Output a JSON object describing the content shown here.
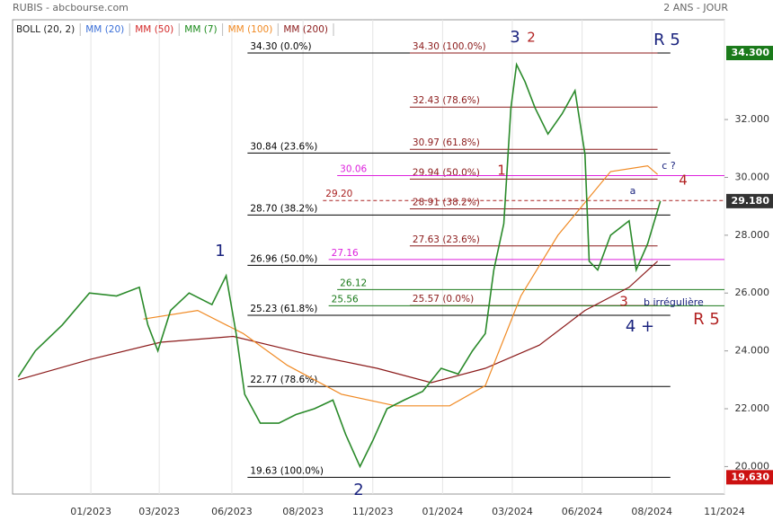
{
  "header": {
    "title": "RUBIS - abcbourse.com",
    "period": "2 ANS - JOUR"
  },
  "chart_data": {
    "type": "line",
    "legend": [
      {
        "name": "BOLL (20, 2)",
        "color": "#222222"
      },
      {
        "name": "MM (20)",
        "color": "#3a6fd8"
      },
      {
        "name": "MM (50)",
        "color": "#d42a2a"
      },
      {
        "name": "MM (7)",
        "color": "#1a8a1a"
      },
      {
        "name": "MM (100)",
        "color": "#f08a24"
      },
      {
        "name": "MM (200)",
        "color": "#8b1a1a"
      }
    ],
    "price": {
      "color": "#2a8a2a",
      "x": [
        4,
        16,
        35,
        54,
        73,
        89,
        95,
        102,
        111,
        124,
        140,
        150,
        157,
        163,
        174,
        187,
        199,
        212,
        225,
        234,
        244,
        253,
        263,
        275,
        288,
        301,
        313,
        323,
        332,
        338,
        345,
        350,
        354,
        360,
        367,
        376,
        386,
        395,
        402,
        405,
        411,
        420,
        433,
        438,
        446,
        455
      ],
      "values": [
        23.1,
        24.0,
        24.9,
        26.0,
        25.9,
        26.2,
        24.9,
        24.0,
        25.4,
        26.0,
        25.6,
        26.6,
        24.6,
        22.5,
        21.5,
        21.5,
        21.8,
        22.0,
        22.3,
        21.1,
        20.0,
        20.9,
        22.0,
        22.3,
        22.6,
        23.4,
        23.2,
        24.0,
        24.6,
        26.8,
        28.4,
        32.4,
        33.9,
        33.3,
        32.4,
        31.5,
        32.2,
        33.0,
        30.8,
        27.1,
        26.8,
        28.0,
        28.5,
        26.8,
        27.7,
        29.18
      ]
    },
    "series": [
      {
        "name": "MM (200)",
        "color": "#8b1a1a",
        "x": [
          4,
          54,
          104,
          155,
          206,
          256,
          294,
          332,
          370,
          402,
          433,
          453
        ],
        "values": [
          23.0,
          23.7,
          24.3,
          24.5,
          23.9,
          23.4,
          22.9,
          23.4,
          24.2,
          25.4,
          26.2,
          27.1
        ]
      },
      {
        "name": "MM (100)",
        "color": "#f08a24",
        "x": [
          92,
          130,
          162,
          193,
          231,
          269,
          307,
          332,
          357,
          383,
          420,
          446,
          453
        ],
        "values": [
          25.1,
          25.4,
          24.6,
          23.5,
          22.5,
          22.1,
          22.1,
          22.8,
          25.9,
          28.0,
          30.2,
          30.4,
          30.1
        ]
      }
    ],
    "xlim": [
      0,
      500
    ],
    "xticks": [
      {
        "value": 55,
        "label": "01/2023"
      },
      {
        "value": 103,
        "label": "03/2023"
      },
      {
        "value": 154,
        "label": "06/2023"
      },
      {
        "value": 204,
        "label": "08/2023"
      },
      {
        "value": 253,
        "label": "11/2023"
      },
      {
        "value": 302,
        "label": "01/2024"
      },
      {
        "value": 351,
        "label": "03/2024"
      },
      {
        "value": 400,
        "label": "06/2024"
      },
      {
        "value": 449,
        "label": "08/2024"
      },
      {
        "value": 500,
        "label": "11/2024"
      }
    ],
    "ylim": [
      19.05,
      35.45
    ],
    "yticks": [
      {
        "value": 20,
        "label": "20.000"
      },
      {
        "value": 22,
        "label": "22.000"
      },
      {
        "value": 24,
        "label": "24.000"
      },
      {
        "value": 26,
        "label": "26.000"
      },
      {
        "value": 28,
        "label": "28.000"
      },
      {
        "value": 30,
        "label": "30.000"
      },
      {
        "value": 32,
        "label": "32.000"
      }
    ],
    "badges": [
      {
        "value": 34.3,
        "label": "34.300",
        "color": "#1a7a1a"
      },
      {
        "value": 29.18,
        "label": "29.180",
        "color": "#333333"
      },
      {
        "value": 19.63,
        "label": "19.630",
        "color": "#cc1111"
      }
    ],
    "levels": [
      {
        "value": 34.3,
        "label": "34.30  (0.0%)",
        "color": "#000000",
        "x": [
          165,
          462
        ]
      },
      {
        "value": 30.84,
        "label": "30.84  (23.6%)",
        "color": "#000000",
        "x": [
          165,
          462
        ]
      },
      {
        "value": 28.7,
        "label": "28.70  (38.2%)",
        "color": "#000000",
        "x": [
          165,
          462
        ]
      },
      {
        "value": 26.96,
        "label": "26.96  (50.0%)",
        "color": "#000000",
        "x": [
          165,
          462
        ]
      },
      {
        "value": 25.23,
        "label": "25.23  (61.8%)",
        "color": "#000000",
        "x": [
          165,
          462
        ]
      },
      {
        "value": 22.77,
        "label": "22.77  (78.6%)",
        "color": "#000000",
        "x": [
          165,
          462
        ]
      },
      {
        "value": 19.63,
        "label": "19.63  (100.0%)",
        "color": "#000000",
        "x": [
          165,
          462
        ]
      },
      {
        "value": 34.3,
        "label": "34.30  (100.0%)",
        "color": "#8b1a1a",
        "x": [
          279,
          453
        ]
      },
      {
        "value": 32.43,
        "label": "32.43  (78.6%)",
        "color": "#8b1a1a",
        "x": [
          279,
          453
        ]
      },
      {
        "value": 30.97,
        "label": "30.97  (61.8%)",
        "color": "#8b1a1a",
        "x": [
          279,
          453
        ]
      },
      {
        "value": 29.94,
        "label": "29.94  (50.0%)",
        "color": "#8b1a1a",
        "x": [
          279,
          453
        ]
      },
      {
        "value": 28.91,
        "label": "28.91  (38.2%)",
        "color": "#8b1a1a",
        "x": [
          279,
          453
        ]
      },
      {
        "value": 27.63,
        "label": "27.63  (23.6%)",
        "color": "#8b1a1a",
        "x": [
          279,
          453
        ]
      },
      {
        "value": 25.57,
        "label": "25.57  (0.0%)",
        "color": "#8b1a1a",
        "x": [
          279,
          453
        ]
      },
      {
        "value": 30.06,
        "label": "30.06",
        "color": "#dd22dd",
        "x": [
          228,
          500
        ]
      },
      {
        "value": 27.16,
        "label": "27.16",
        "color": "#dd22dd",
        "x": [
          222,
          500
        ]
      },
      {
        "value": 29.2,
        "label": "29.20",
        "color": "#aa2222",
        "x": [
          218,
          500
        ],
        "dashed": true
      },
      {
        "value": 26.12,
        "label": "26.12",
        "color": "#1a7a1a",
        "x": [
          228,
          500
        ]
      },
      {
        "value": 25.56,
        "label": "25.56",
        "color": "#1a7a1a",
        "x": [
          222,
          500
        ]
      }
    ]
  },
  "annotations": [
    "1",
    "2",
    "3",
    "2",
    "1",
    "R 5",
    "c ?",
    "4",
    "a",
    "3",
    "b irrégulière",
    "4 +",
    "R 5"
  ]
}
